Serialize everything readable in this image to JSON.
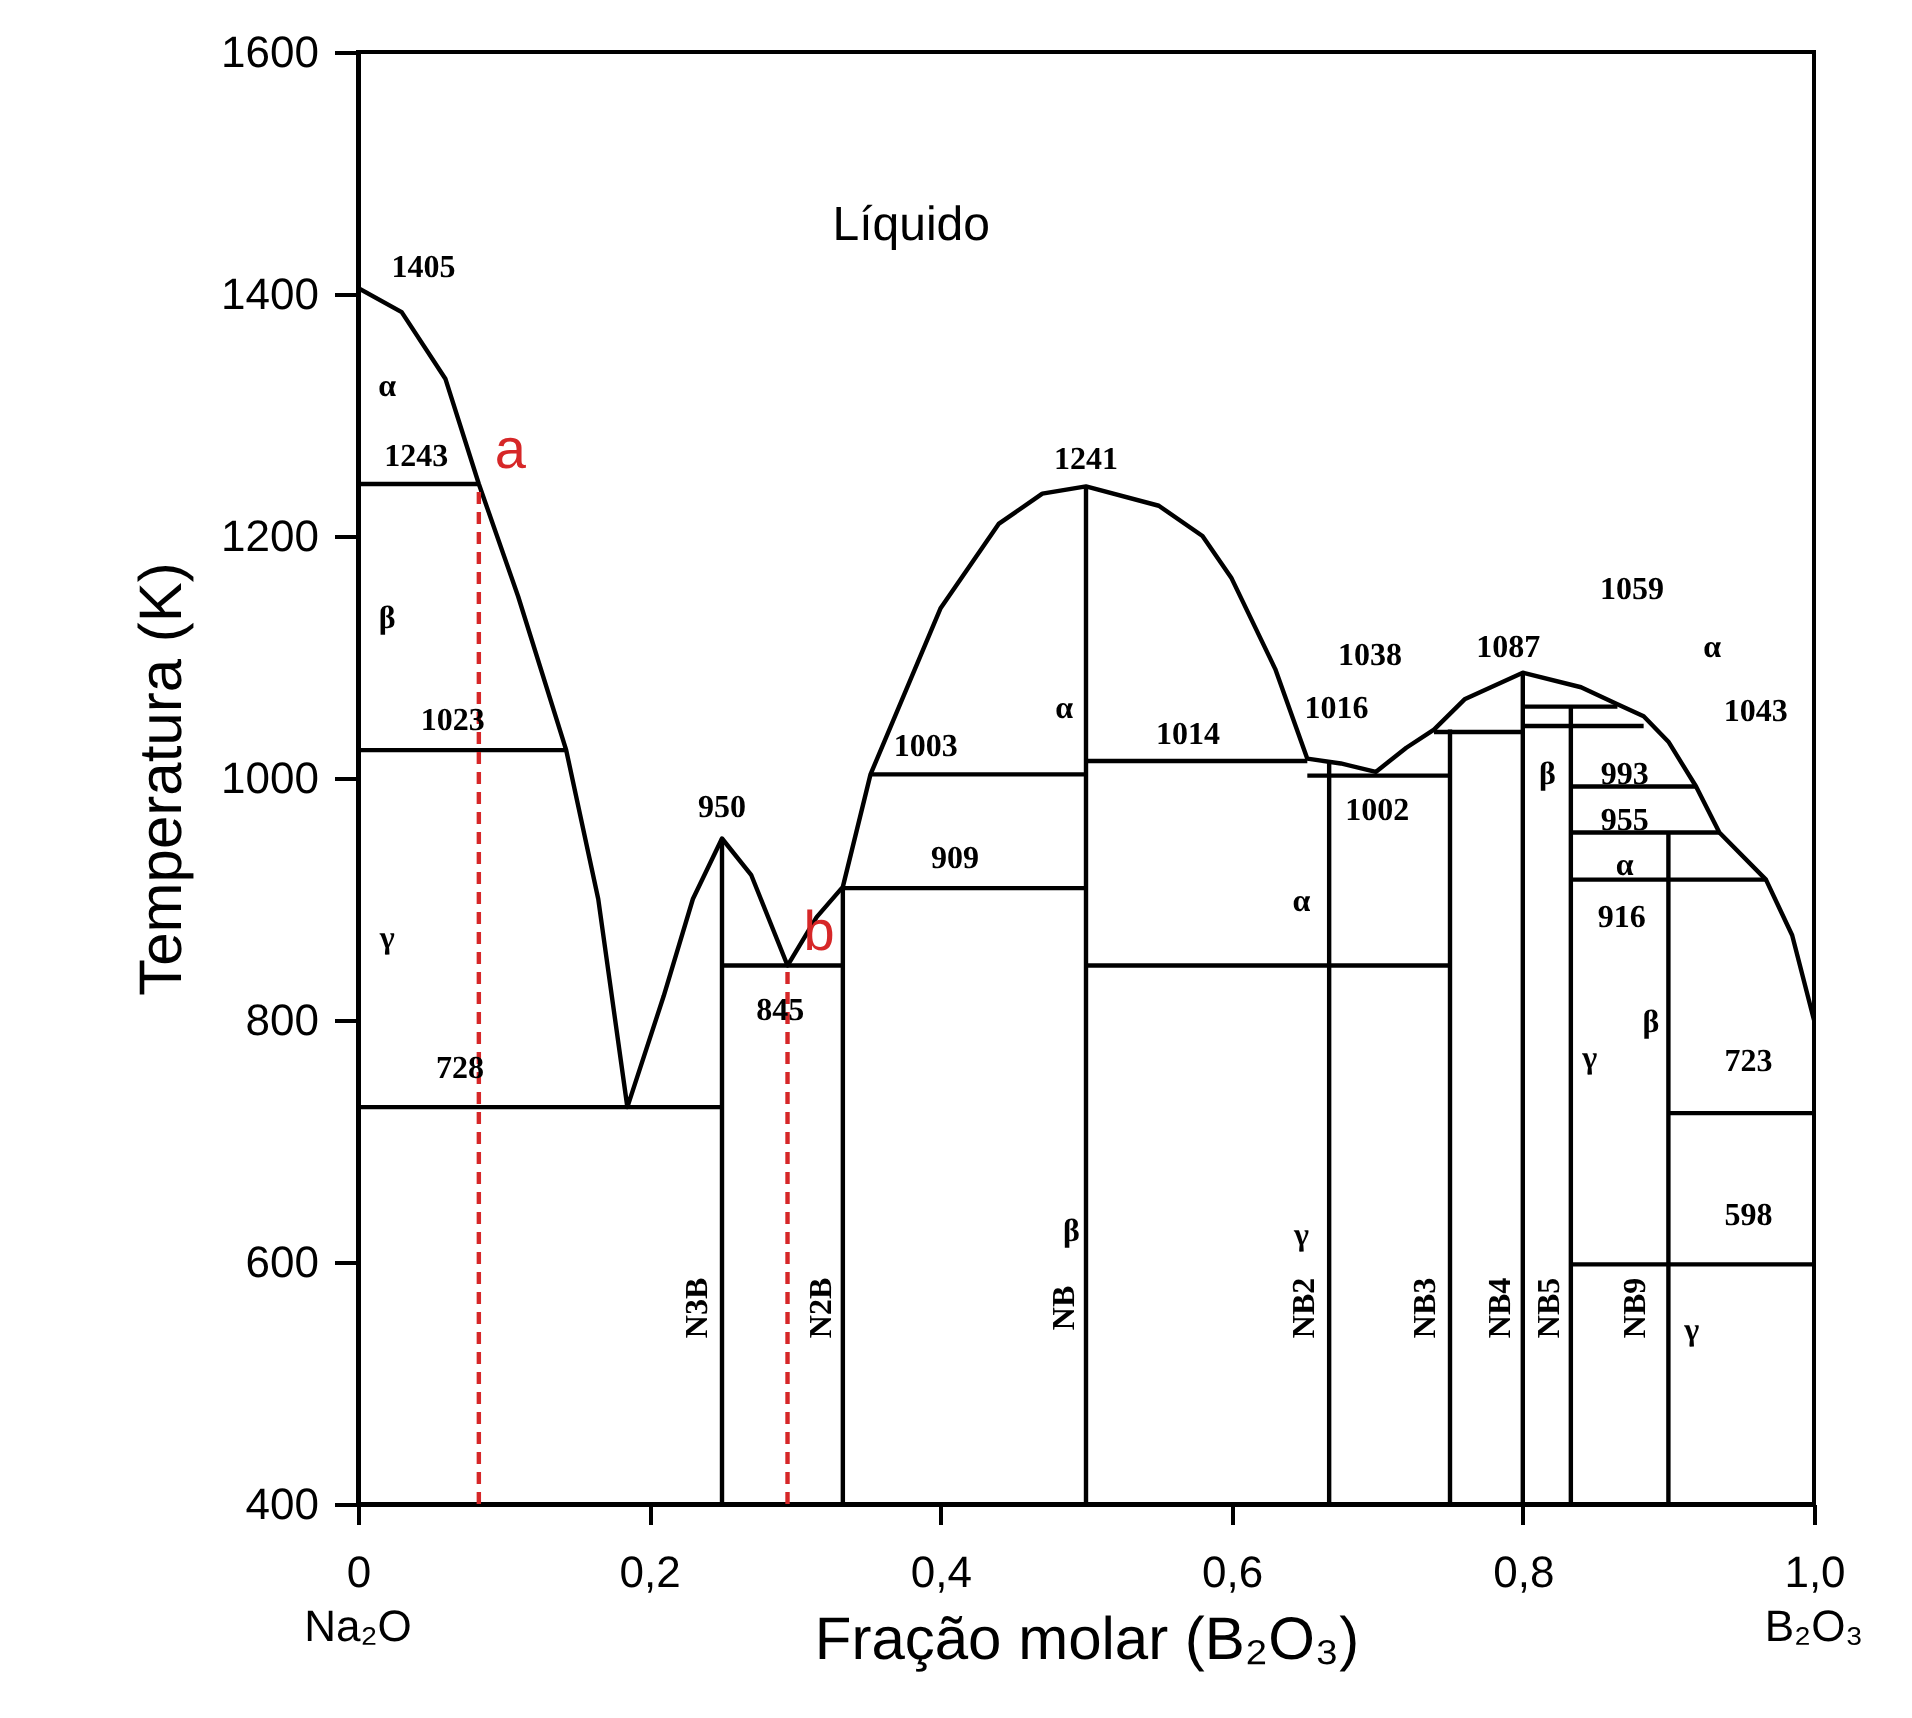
{
  "chart_data": {
    "type": "line",
    "xlabel": "Fração molar (B₂O₃)",
    "ylabel": "Temperatura (K)",
    "xlim": [
      0,
      1
    ],
    "xticks": [
      0,
      {
        "value": 0.2,
        "label": "0,2"
      },
      {
        "value": 0.4,
        "label": "0,4"
      },
      {
        "value": 0.6,
        "label": "0,6"
      },
      {
        "value": 0.8,
        "label": "0,8"
      },
      {
        "value": 1,
        "label": "1,0"
      }
    ],
    "ylim": [
      400,
      1600
    ],
    "yticks": [
      400,
      600,
      800,
      1000,
      1200,
      1400,
      1600
    ],
    "grid": false,
    "legend": false,
    "line_style": "solid",
    "series": [
      {
        "color": "#000000",
        "x": [
          0,
          0.03,
          0.06,
          0.083,
          0.11,
          0.143,
          0.165,
          0.185,
          0.21,
          0.23,
          0.25,
          0.27,
          0.295,
          0.315,
          0.333,
          0.352,
          0.4,
          0.44,
          0.47,
          0.5,
          0.55,
          0.58,
          0.6,
          0.63,
          0.652,
          0.675,
          0.699,
          0.72,
          0.739,
          0.76,
          0.8,
          0.84,
          0.865,
          0.883,
          0.9,
          0.919,
          0.935,
          0.967,
          0.985,
          1.0
        ],
        "values": [
          1405,
          1385,
          1330,
          1243,
          1150,
          1023,
          900,
          728,
          820,
          900,
          950,
          920,
          845,
          885,
          910,
          1003,
          1140,
          1210,
          1235,
          1241,
          1225,
          1200,
          1165,
          1090,
          1016,
          1012,
          1005,
          1025,
          1040,
          1065,
          1087,
          1075,
          1061,
          1051,
          1030,
          993,
          955,
          916,
          870,
          800
        ]
      },
      {
        "color": "#000000",
        "x": [
          0,
          0.083
        ],
        "values": [
          1243,
          1243
        ]
      },
      {
        "color": "#000000",
        "x": [
          0,
          0.143
        ],
        "values": [
          1023,
          1023
        ]
      },
      {
        "color": "#000000",
        "x": [
          0,
          0.25
        ],
        "values": [
          728,
          728
        ]
      },
      {
        "color": "#000000",
        "x": [
          0.25,
          0.333
        ],
        "values": [
          845,
          845
        ]
      },
      {
        "color": "#000000",
        "x": [
          0.333,
          0.5
        ],
        "values": [
          909,
          909
        ]
      },
      {
        "color": "#000000",
        "x": [
          0.352,
          0.5
        ],
        "values": [
          1003,
          1003
        ]
      },
      {
        "color": "#000000",
        "x": [
          0.5,
          0.652
        ],
        "values": [
          1014,
          1014
        ]
      },
      {
        "color": "#000000",
        "x": [
          0.652,
          0.75
        ],
        "values": [
          1002,
          1002
        ]
      },
      {
        "color": "#000000",
        "x": [
          0.5,
          0.75
        ],
        "values": [
          845,
          845
        ]
      },
      {
        "color": "#000000",
        "x": [
          0.739,
          0.8
        ],
        "values": [
          1038,
          1038
        ]
      },
      {
        "color": "#000000",
        "x": [
          0.8,
          0.865
        ],
        "values": [
          1059,
          1059
        ]
      },
      {
        "color": "#000000",
        "x": [
          0.8,
          0.883
        ],
        "values": [
          1043,
          1043
        ]
      },
      {
        "color": "#000000",
        "x": [
          0.833,
          0.919
        ],
        "values": [
          993,
          993
        ]
      },
      {
        "color": "#000000",
        "x": [
          0.833,
          0.935
        ],
        "values": [
          955,
          955
        ]
      },
      {
        "color": "#000000",
        "x": [
          0.833,
          0.967
        ],
        "values": [
          916,
          916
        ]
      },
      {
        "color": "#000000",
        "x": [
          0.9,
          1.0
        ],
        "values": [
          723,
          723
        ]
      },
      {
        "color": "#000000",
        "x": [
          0.833,
          1.0
        ],
        "values": [
          598,
          598
        ]
      },
      {
        "color": "#000000",
        "x": [
          0.25,
          0.25
        ],
        "values": [
          400,
          950
        ]
      },
      {
        "color": "#000000",
        "x": [
          0.333,
          0.333
        ],
        "values": [
          400,
          910
        ]
      },
      {
        "color": "#000000",
        "x": [
          0.5,
          0.5
        ],
        "values": [
          400,
          1241
        ]
      },
      {
        "color": "#000000",
        "x": [
          0.667,
          0.667
        ],
        "values": [
          400,
          1014
        ]
      },
      {
        "color": "#000000",
        "x": [
          0.75,
          0.75
        ],
        "values": [
          400,
          1040
        ]
      },
      {
        "color": "#000000",
        "x": [
          0.8,
          0.8
        ],
        "values": [
          400,
          1087
        ]
      },
      {
        "color": "#000000",
        "x": [
          0.833,
          0.833
        ],
        "values": [
          400,
          1059
        ]
      },
      {
        "color": "#000000",
        "x": [
          0.9,
          0.9
        ],
        "values": [
          400,
          955
        ]
      },
      {
        "name": "a",
        "color": "#d62728",
        "line_style": "dashed",
        "x": [
          0.083,
          0.083
        ],
        "values": [
          400,
          1243
        ]
      },
      {
        "name": "b",
        "color": "#d62728",
        "line_style": "dashed",
        "x": [
          0.295,
          0.295
        ],
        "values": [
          400,
          845
        ]
      }
    ],
    "annotations": [
      "Líquido",
      "1405",
      "α",
      "1243",
      "β",
      "1023",
      "γ",
      "728",
      "950",
      "845",
      "909",
      "1003",
      "1241",
      "α",
      "1014",
      "1016",
      "1002",
      "α",
      "β",
      "γ",
      "1038",
      "1087",
      "1059",
      "α",
      "1043",
      "β",
      "993",
      "955",
      "α",
      "916",
      "γ",
      "β",
      "723",
      "598",
      "γ",
      "N3B",
      "N2B",
      "NB",
      "NB2",
      "NB3",
      "NB4",
      "NB5",
      "NB9",
      "Na₂O",
      "B₂O₃"
    ]
  }
}
